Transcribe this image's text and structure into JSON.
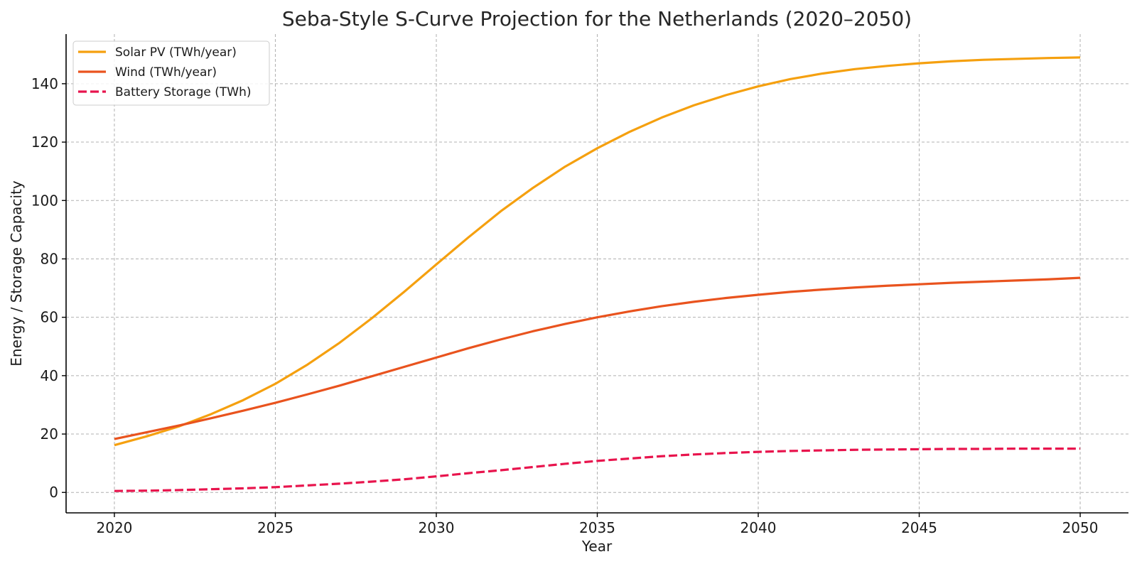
{
  "chart_data": {
    "type": "line",
    "title": "Seba-Style S-Curve Projection for the Netherlands (2020–2050)",
    "xlabel": "Year",
    "ylabel": "Energy / Storage Capacity",
    "xlim": [
      2018.5,
      2051.5
    ],
    "ylim": [
      -7,
      157
    ],
    "xticks": [
      2020,
      2025,
      2030,
      2035,
      2040,
      2045,
      2050
    ],
    "yticks": [
      0,
      20,
      40,
      60,
      80,
      100,
      120,
      140
    ],
    "grid": true,
    "legend_position": "top-left",
    "x": [
      2020,
      2021,
      2022,
      2023,
      2024,
      2025,
      2026,
      2027,
      2028,
      2029,
      2030,
      2031,
      2032,
      2033,
      2034,
      2035,
      2036,
      2037,
      2038,
      2039,
      2040,
      2041,
      2042,
      2043,
      2044,
      2045,
      2046,
      2047,
      2048,
      2049,
      2050
    ],
    "series": [
      {
        "name": "Solar PV (TWh/year)",
        "color": "#f5a00f",
        "dash": "solid",
        "values": [
          16.2,
          19.2,
          22.6,
          26.8,
          31.6,
          37.2,
          43.8,
          51.3,
          59.7,
          68.7,
          78.1,
          87.4,
          96.3,
          104.3,
          111.6,
          117.9,
          123.5,
          128.4,
          132.6,
          136.1,
          139.1,
          141.6,
          143.5,
          145.0,
          146.1,
          147.0,
          147.7,
          148.2,
          148.5,
          148.8,
          149.0
        ]
      },
      {
        "name": "Wind (TWh/year)",
        "color": "#e9531e",
        "dash": "solid",
        "values": [
          18.3,
          20.6,
          22.9,
          25.4,
          28.0,
          30.7,
          33.6,
          36.6,
          39.8,
          43.0,
          46.2,
          49.4,
          52.4,
          55.2,
          57.7,
          60.0,
          62.0,
          63.8,
          65.3,
          66.6,
          67.7,
          68.7,
          69.5,
          70.2,
          70.8,
          71.3,
          71.8,
          72.2,
          72.6,
          73.0,
          73.5
        ]
      },
      {
        "name": "Battery Storage (TWh)",
        "color": "#e8144d",
        "dash": "dashed",
        "values": [
          0.5,
          0.6,
          0.8,
          1.1,
          1.4,
          1.8,
          2.4,
          3.0,
          3.7,
          4.5,
          5.5,
          6.6,
          7.6,
          8.7,
          9.8,
          10.8,
          11.6,
          12.4,
          13.0,
          13.5,
          13.9,
          14.2,
          14.4,
          14.6,
          14.7,
          14.8,
          14.9,
          14.9,
          15.0,
          15.0,
          15.0
        ]
      }
    ]
  }
}
